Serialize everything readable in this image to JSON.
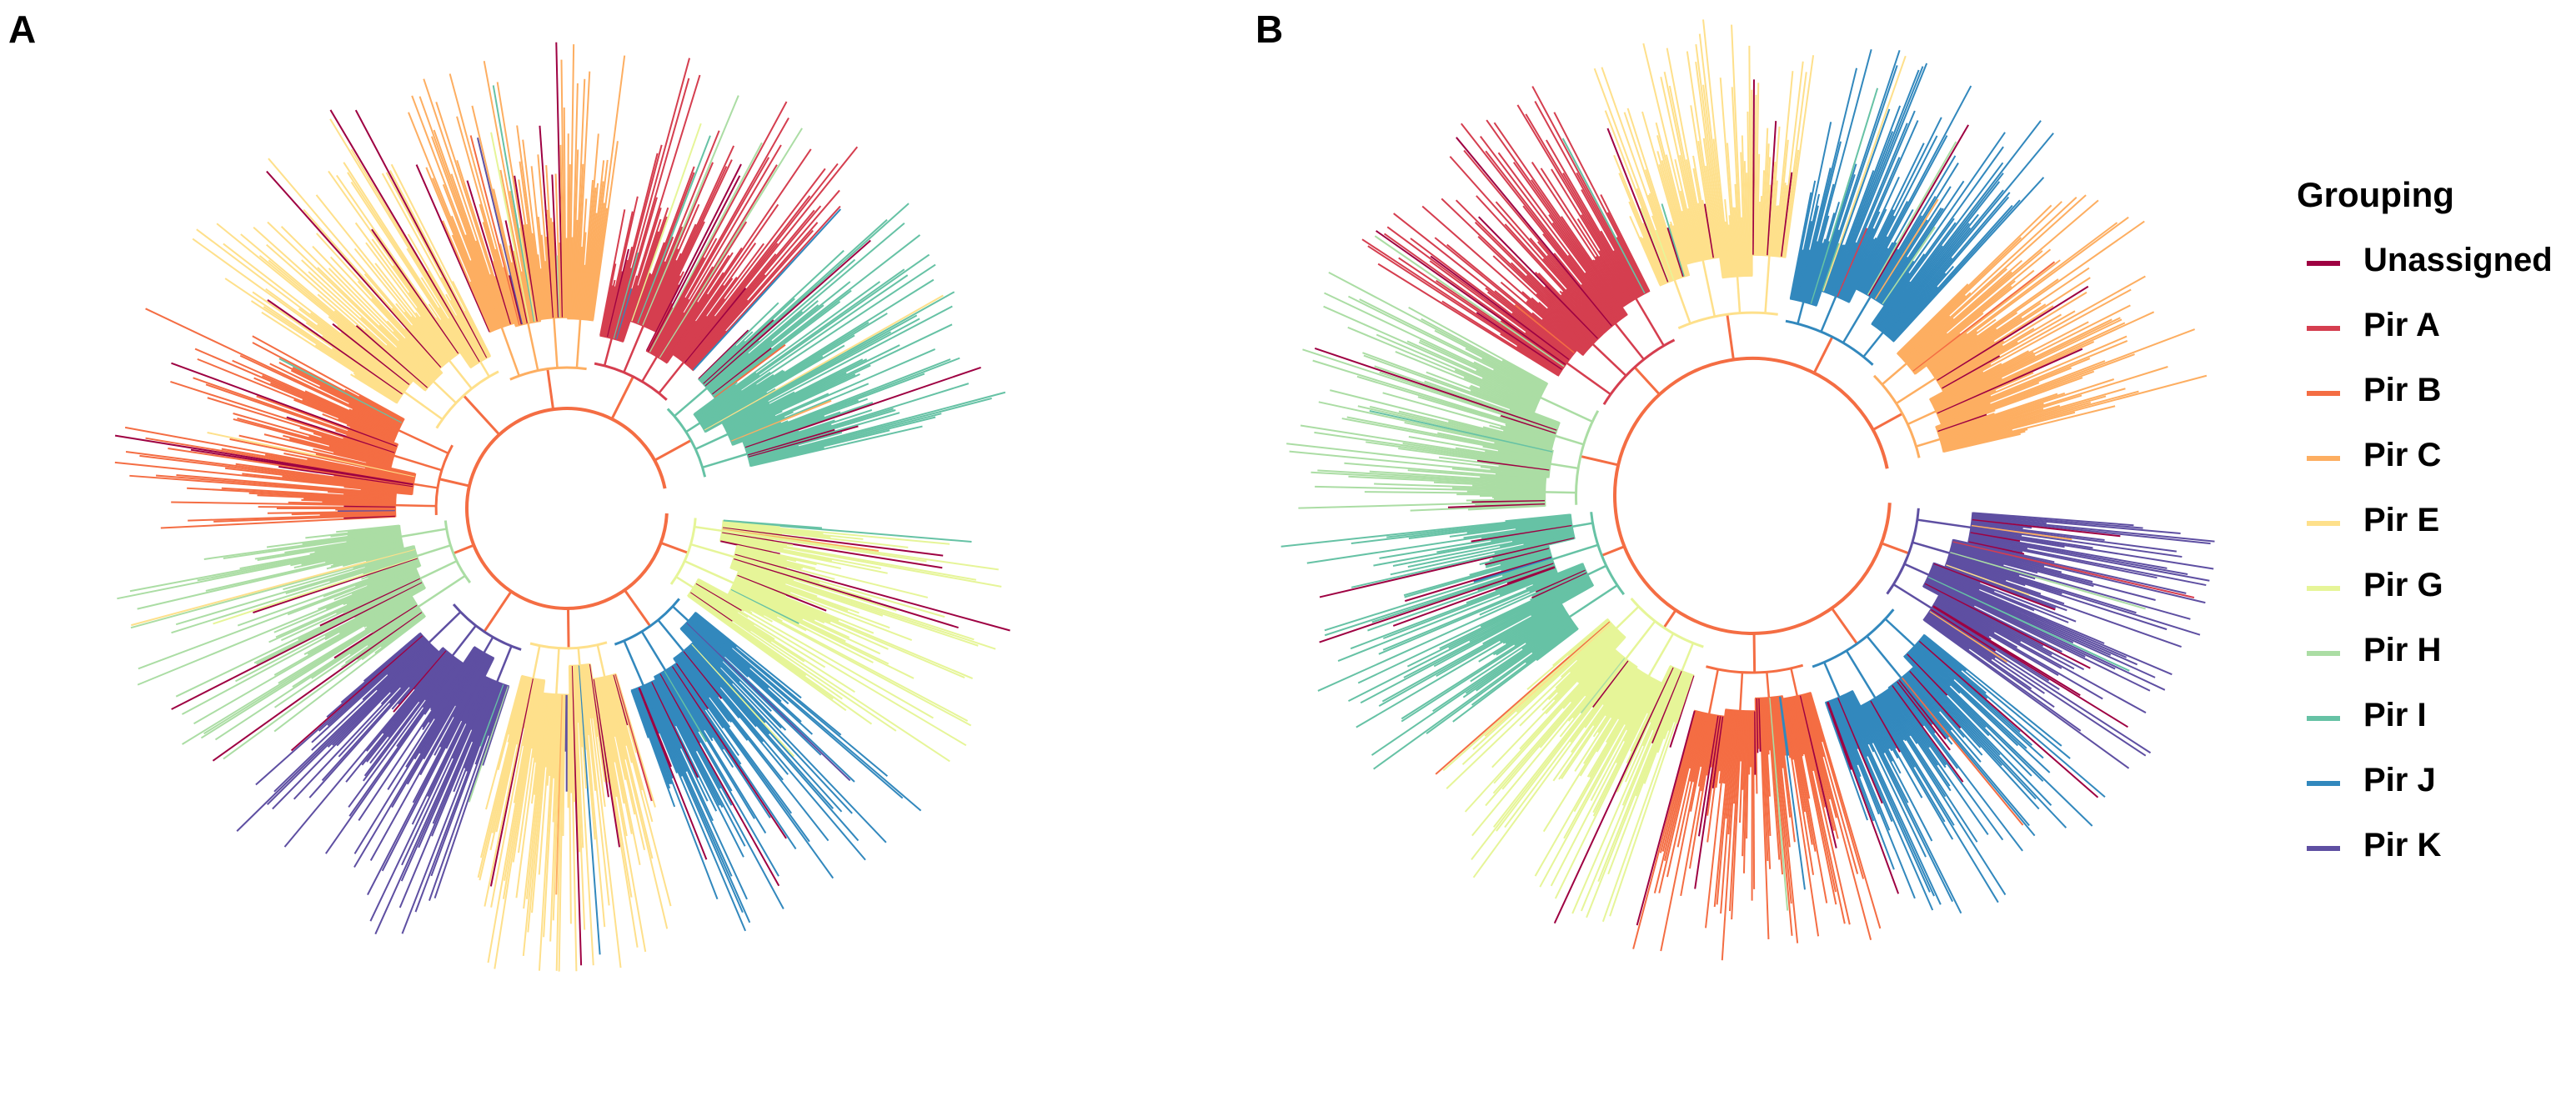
{
  "panels": [
    {
      "id": "a",
      "letter": "A"
    },
    {
      "id": "b",
      "letter": "B"
    }
  ],
  "legend": {
    "title": "Grouping",
    "items": [
      {
        "label": "Unassigned",
        "color": "#9e0142"
      },
      {
        "label": "Pir A",
        "color": "#d53e4f"
      },
      {
        "label": "Pir B",
        "color": "#f46d43"
      },
      {
        "label": "Pir C",
        "color": "#fdae61"
      },
      {
        "label": "Pir E",
        "color": "#fee08b"
      },
      {
        "label": "Pir G",
        "color": "#e6f598"
      },
      {
        "label": "Pir H",
        "color": "#abdda4"
      },
      {
        "label": "Pir I",
        "color": "#66c2a5"
      },
      {
        "label": "Pir J",
        "color": "#3288bd"
      },
      {
        "label": "Pir K",
        "color": "#5e4fa2"
      }
    ]
  },
  "trees": {
    "backbone_color": "#f46d43",
    "a_clades": [
      "Pir G",
      "Pir J",
      "Pir E",
      "Pir K",
      "Pir H",
      "Pir B",
      "Pir E",
      "Pir C",
      "Pir A",
      "Pir I"
    ],
    "b_clades": [
      "Pir K",
      "Pir J",
      "Pir B",
      "Pir G",
      "Pir I",
      "Pir H",
      "Pir A",
      "Pir E",
      "Pir J",
      "Pir C"
    ]
  }
}
